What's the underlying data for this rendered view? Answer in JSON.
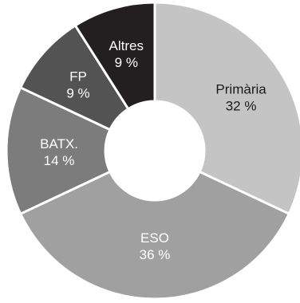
{
  "chart_data": {
    "type": "pie",
    "donut": true,
    "categories": [
      "Primària",
      "ESO",
      "BATX.",
      "FP",
      "Altres"
    ],
    "values": [
      32,
      36,
      14,
      9,
      9
    ],
    "value_labels": [
      "32 %",
      "36 %",
      "14 %",
      "9 %",
      "9 %"
    ],
    "colors": [
      "#c4c4c4",
      "#a0a0a0",
      "#7c7c7c",
      "#535353",
      "#231f20"
    ],
    "label_colors": [
      "#1a1a1a",
      "#ffffff",
      "#ffffff",
      "#ffffff",
      "#ffffff"
    ],
    "start_angle_deg": 0,
    "direction": "clockwise",
    "title": "",
    "legend": "none"
  }
}
